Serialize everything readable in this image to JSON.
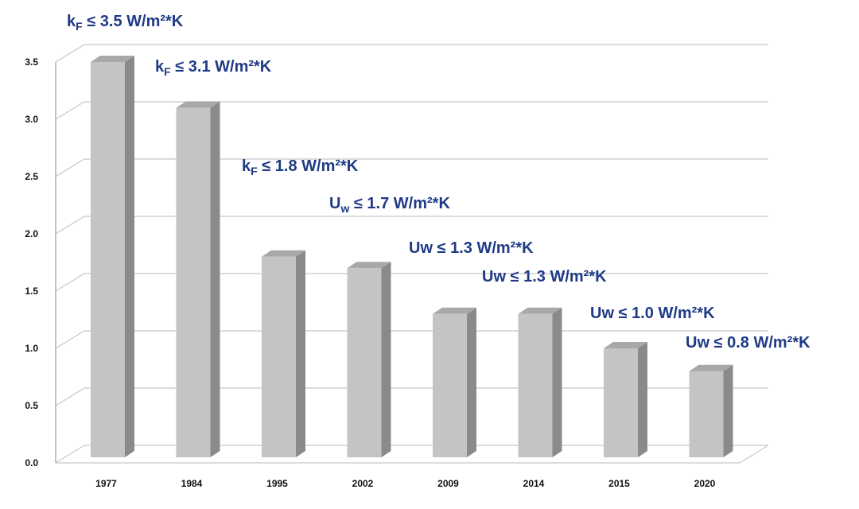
{
  "chart_data": {
    "type": "bar",
    "categories": [
      "1977",
      "1984",
      "1995",
      "2002",
      "2009",
      "2014",
      "2015",
      "2020"
    ],
    "values": [
      3.5,
      3.1,
      1.8,
      1.7,
      1.3,
      1.3,
      1.0,
      0.8
    ],
    "ylim": [
      0,
      3.5
    ],
    "yticks": [
      "0.0",
      "0.5",
      "1.0",
      "1.5",
      "2.0",
      "2.5",
      "3.0",
      "3.5"
    ],
    "grid": true,
    "title": "",
    "xlabel": "",
    "ylabel": "",
    "annotations": [
      {
        "prefix": "k",
        "sub": "F",
        "rest": " ≤ 3.5 W/m²*K"
      },
      {
        "prefix": "k",
        "sub": "F",
        "rest": " ≤ 3.1 W/m²*K"
      },
      {
        "prefix": "k",
        "sub": "F",
        "rest": " ≤ 1.8 W/m²*K"
      },
      {
        "prefix": "U",
        "sub": "w",
        "rest": " ≤ 1.7 W/m²*K"
      },
      {
        "prefix": "Uw",
        "sub": "",
        "rest": " ≤ 1.3 W/m²*K"
      },
      {
        "prefix": "Uw",
        "sub": "",
        "rest": " ≤ 1.3 W/m²*K"
      },
      {
        "prefix": "Uw",
        "sub": "",
        "rest": " ≤ 1.0 W/m²*K"
      },
      {
        "prefix": "Uw",
        "sub": "",
        "rest": " ≤ 0.8 W/m²*K"
      }
    ],
    "colors": {
      "bar_front": "#c4c4c4",
      "bar_side": "#8a8a8a",
      "bar_top": "#a8a8a8",
      "grid": "#c8c8c8",
      "wall": "#ffffff",
      "annotation": "#1f3a86"
    }
  }
}
